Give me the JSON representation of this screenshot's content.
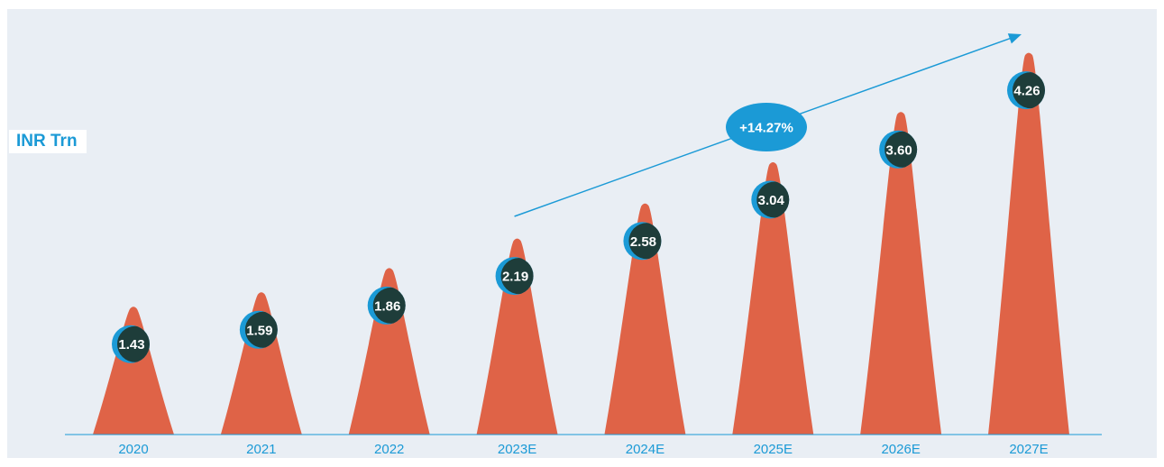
{
  "chart_data": {
    "type": "bar",
    "categories": [
      "2020",
      "2021",
      "2022",
      "2023E",
      "2024E",
      "2025E",
      "2026E",
      "2027E"
    ],
    "values": [
      1.43,
      1.59,
      1.86,
      2.19,
      2.58,
      3.04,
      3.6,
      4.26
    ],
    "value_labels": [
      "1.43",
      "1.59",
      "1.86",
      "2.19",
      "2.58",
      "3.04",
      "3.60",
      "4.26"
    ],
    "unit_label": "INR Trn",
    "annotation": "+14.27%",
    "legend": "none",
    "grid": false,
    "colors": {
      "bar": "#df6347",
      "marker_outer": "#1b9ad6",
      "marker_inner": "#1e3d3a",
      "axis": "#1b9ad6",
      "tick_text": "#1b9ad6",
      "panel_bg": "#e9eef4"
    }
  }
}
